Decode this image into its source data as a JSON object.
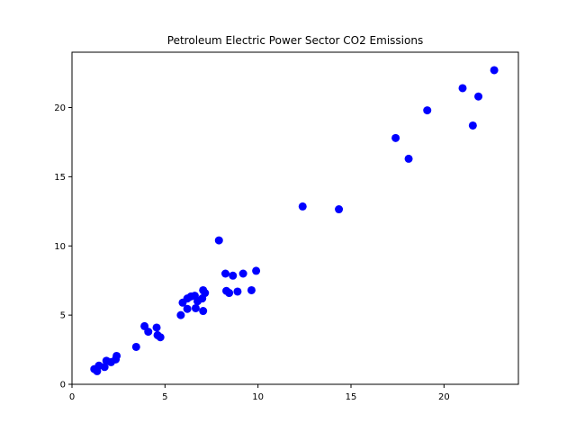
{
  "chart_data": {
    "type": "scatter",
    "title": "Petroleum Electric Power Sector CO2 Emissions",
    "xlabel": "",
    "ylabel": "",
    "xlim": [
      0,
      24
    ],
    "ylim": [
      0,
      24
    ],
    "x_ticks": [
      0,
      5,
      10,
      15,
      20
    ],
    "y_ticks": [
      0,
      5,
      10,
      15,
      20
    ],
    "grid": false,
    "marker_color": "#0000ff",
    "points": [
      {
        "x": 1.2,
        "y": 1.1
      },
      {
        "x": 1.35,
        "y": 0.95
      },
      {
        "x": 1.45,
        "y": 1.35
      },
      {
        "x": 1.75,
        "y": 1.25
      },
      {
        "x": 1.85,
        "y": 1.7
      },
      {
        "x": 2.1,
        "y": 1.6
      },
      {
        "x": 2.35,
        "y": 1.8
      },
      {
        "x": 2.4,
        "y": 2.05
      },
      {
        "x": 3.45,
        "y": 2.7
      },
      {
        "x": 3.9,
        "y": 4.2
      },
      {
        "x": 4.1,
        "y": 3.8
      },
      {
        "x": 4.55,
        "y": 4.1
      },
      {
        "x": 4.6,
        "y": 3.55
      },
      {
        "x": 4.75,
        "y": 3.4
      },
      {
        "x": 5.85,
        "y": 5.0
      },
      {
        "x": 5.95,
        "y": 5.9
      },
      {
        "x": 6.2,
        "y": 5.45
      },
      {
        "x": 6.2,
        "y": 6.2
      },
      {
        "x": 6.4,
        "y": 6.35
      },
      {
        "x": 6.6,
        "y": 6.4
      },
      {
        "x": 6.65,
        "y": 5.5
      },
      {
        "x": 6.75,
        "y": 6.0
      },
      {
        "x": 7.0,
        "y": 6.2
      },
      {
        "x": 7.05,
        "y": 6.8
      },
      {
        "x": 7.15,
        "y": 6.6
      },
      {
        "x": 7.05,
        "y": 5.3
      },
      {
        "x": 7.9,
        "y": 10.4
      },
      {
        "x": 8.25,
        "y": 8.0
      },
      {
        "x": 8.3,
        "y": 6.75
      },
      {
        "x": 8.45,
        "y": 6.6
      },
      {
        "x": 8.65,
        "y": 7.85
      },
      {
        "x": 8.9,
        "y": 6.7
      },
      {
        "x": 9.2,
        "y": 8.0
      },
      {
        "x": 9.65,
        "y": 6.8
      },
      {
        "x": 9.9,
        "y": 8.2
      },
      {
        "x": 12.4,
        "y": 12.85
      },
      {
        "x": 14.35,
        "y": 12.65
      },
      {
        "x": 17.4,
        "y": 17.8
      },
      {
        "x": 18.1,
        "y": 16.3
      },
      {
        "x": 19.1,
        "y": 19.8
      },
      {
        "x": 21.0,
        "y": 21.4
      },
      {
        "x": 21.55,
        "y": 18.7
      },
      {
        "x": 21.85,
        "y": 20.8
      },
      {
        "x": 22.7,
        "y": 22.7
      }
    ]
  }
}
